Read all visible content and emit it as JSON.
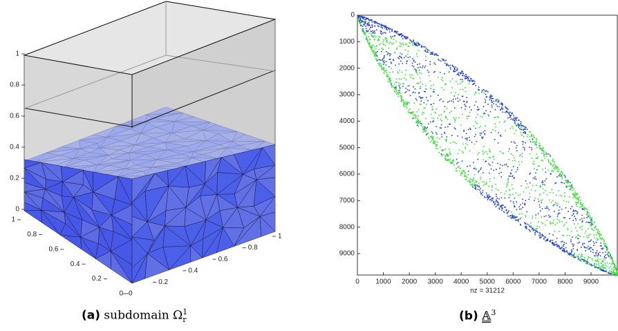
{
  "panel_a": {
    "z_ticks": [
      0,
      0.2,
      0.4,
      0.6,
      0.8,
      1
    ],
    "x_ticks": [
      1,
      0.8,
      0.6,
      0.4,
      0.2,
      0
    ],
    "y_ticks": [
      0,
      0.2,
      0.4,
      0.6,
      0.8,
      1
    ]
  },
  "panel_b": {
    "y_ticks": [
      0,
      1000,
      2000,
      3000,
      4000,
      5000,
      6000,
      7000,
      8000,
      9000
    ],
    "x_ticks": [
      0,
      1000,
      2000,
      3000,
      4000,
      5000,
      6000,
      7000,
      8000,
      9000
    ],
    "xlabel": "nz = 31212"
  },
  "captions": [
    {
      "label": "(a)",
      "text": "subdomain Ω",
      "sup": "1",
      "sub": "r"
    },
    {
      "label": "(b)",
      "text": "𝔸",
      "sup": "3"
    }
  ]
}
